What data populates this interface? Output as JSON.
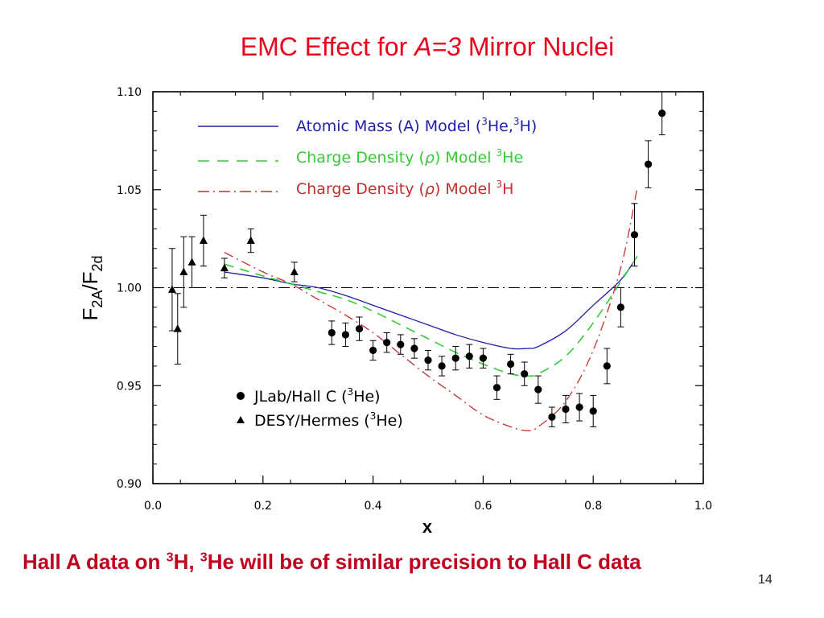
{
  "slide": {
    "title_prefix": "EMC Effect for ",
    "title_italic": "A=3",
    "title_suffix": " Mirror Nuclei",
    "footer_part1": "Hall A data on ",
    "footer_sup1": "3",
    "footer_part2": "H, ",
    "footer_sup2": "3",
    "footer_part3": "He will be of similar precision to Hall C data",
    "page_number": "14"
  },
  "chart_data": {
    "type": "scatter",
    "xlabel": "x",
    "ylabel_main": "F",
    "ylabel_sub1": "2A",
    "ylabel_sep": "/F",
    "ylabel_sub2": "2d",
    "xlim": [
      0.0,
      1.0
    ],
    "ylim": [
      0.9,
      1.1
    ],
    "x_ticks": [
      0.0,
      0.2,
      0.4,
      0.6,
      0.8,
      1.0
    ],
    "x_tick_labels": [
      "0.0",
      "0.2",
      "0.4",
      "0.6",
      "0.8",
      "1.0"
    ],
    "y_ticks": [
      0.9,
      0.95,
      1.0,
      1.05,
      1.1
    ],
    "y_tick_labels": [
      "0.90",
      "0.95",
      "1.00",
      "1.05",
      "1.10"
    ],
    "reference_line": 1.0,
    "colors": {
      "atomic_mass": "#1f1fa8",
      "charge_he3": "#33cc33",
      "charge_h3": "#c03030",
      "points": "#000000",
      "reference": "#000000"
    },
    "model_curves": [
      {
        "id": "atomic-mass",
        "style": "solid",
        "label_main": "Atomic Mass (A) Model (",
        "label_sup1": "3",
        "label_mid": "He,",
        "label_sup2": "3",
        "label_end": "H)",
        "points": [
          [
            0.13,
            1.008
          ],
          [
            0.2,
            1.005
          ],
          [
            0.25,
            1.002
          ],
          [
            0.3,
            1.0
          ],
          [
            0.35,
            0.996
          ],
          [
            0.4,
            0.991
          ],
          [
            0.45,
            0.986
          ],
          [
            0.5,
            0.981
          ],
          [
            0.55,
            0.976
          ],
          [
            0.6,
            0.972
          ],
          [
            0.65,
            0.969
          ],
          [
            0.68,
            0.969
          ],
          [
            0.7,
            0.97
          ],
          [
            0.75,
            0.978
          ],
          [
            0.8,
            0.991
          ],
          [
            0.85,
            1.004
          ],
          [
            0.88,
            1.016
          ]
        ]
      },
      {
        "id": "charge-density-he3",
        "style": "dashed",
        "label_main": "Charge Density (",
        "label_rho": "ρ",
        "label_mid": ") Model ",
        "label_sup1": "3",
        "label_end": "He",
        "points": [
          [
            0.13,
            1.012
          ],
          [
            0.2,
            1.006
          ],
          [
            0.25,
            1.002
          ],
          [
            0.3,
            0.998
          ],
          [
            0.35,
            0.994
          ],
          [
            0.4,
            0.988
          ],
          [
            0.45,
            0.981
          ],
          [
            0.5,
            0.974
          ],
          [
            0.55,
            0.967
          ],
          [
            0.6,
            0.961
          ],
          [
            0.65,
            0.956
          ],
          [
            0.68,
            0.955
          ],
          [
            0.7,
            0.956
          ],
          [
            0.75,
            0.965
          ],
          [
            0.8,
            0.982
          ],
          [
            0.85,
            1.003
          ],
          [
            0.88,
            1.016
          ]
        ]
      },
      {
        "id": "charge-density-h3",
        "style": "dashdot",
        "label_main": "Charge Density (",
        "label_rho": "ρ",
        "label_mid": ") Model ",
        "label_sup1": "3",
        "label_end": "H",
        "points": [
          [
            0.13,
            1.018
          ],
          [
            0.2,
            1.008
          ],
          [
            0.25,
            1.002
          ],
          [
            0.3,
            0.994
          ],
          [
            0.35,
            0.986
          ],
          [
            0.4,
            0.977
          ],
          [
            0.45,
            0.966
          ],
          [
            0.5,
            0.955
          ],
          [
            0.55,
            0.945
          ],
          [
            0.6,
            0.935
          ],
          [
            0.65,
            0.929
          ],
          [
            0.68,
            0.927
          ],
          [
            0.7,
            0.929
          ],
          [
            0.75,
            0.942
          ],
          [
            0.8,
            0.968
          ],
          [
            0.85,
            1.01
          ],
          [
            0.88,
            1.051
          ]
        ]
      }
    ],
    "series": [
      {
        "name_main": "JLab/Hall C (",
        "name_sup": "3",
        "name_end": "He)",
        "marker": "circle",
        "points": [
          {
            "x": 0.325,
            "y": 0.977,
            "err": 0.006
          },
          {
            "x": 0.35,
            "y": 0.976,
            "err": 0.006
          },
          {
            "x": 0.375,
            "y": 0.979,
            "err": 0.006
          },
          {
            "x": 0.4,
            "y": 0.968,
            "err": 0.005
          },
          {
            "x": 0.425,
            "y": 0.972,
            "err": 0.005
          },
          {
            "x": 0.45,
            "y": 0.971,
            "err": 0.005
          },
          {
            "x": 0.475,
            "y": 0.969,
            "err": 0.005
          },
          {
            "x": 0.5,
            "y": 0.963,
            "err": 0.005
          },
          {
            "x": 0.525,
            "y": 0.96,
            "err": 0.005
          },
          {
            "x": 0.55,
            "y": 0.964,
            "err": 0.006
          },
          {
            "x": 0.575,
            "y": 0.965,
            "err": 0.006
          },
          {
            "x": 0.6,
            "y": 0.964,
            "err": 0.005
          },
          {
            "x": 0.625,
            "y": 0.949,
            "err": 0.006
          },
          {
            "x": 0.65,
            "y": 0.961,
            "err": 0.005
          },
          {
            "x": 0.675,
            "y": 0.956,
            "err": 0.006
          },
          {
            "x": 0.7,
            "y": 0.948,
            "err": 0.007
          },
          {
            "x": 0.725,
            "y": 0.934,
            "err": 0.005
          },
          {
            "x": 0.75,
            "y": 0.938,
            "err": 0.007
          },
          {
            "x": 0.775,
            "y": 0.939,
            "err": 0.007
          },
          {
            "x": 0.8,
            "y": 0.937,
            "err": 0.008
          },
          {
            "x": 0.825,
            "y": 0.96,
            "err": 0.009
          },
          {
            "x": 0.85,
            "y": 0.99,
            "err": 0.01
          },
          {
            "x": 0.875,
            "y": 1.027,
            "err": 0.016
          },
          {
            "x": 0.9,
            "y": 1.063,
            "err": 0.012
          },
          {
            "x": 0.925,
            "y": 1.089,
            "err": 0.011
          }
        ]
      },
      {
        "name_main": "DESY/Hermes (",
        "name_sup": "3",
        "name_end": "He)",
        "marker": "triangle",
        "points": [
          {
            "x": 0.035,
            "y": 0.999,
            "err": 0.021
          },
          {
            "x": 0.045,
            "y": 0.979,
            "err": 0.018
          },
          {
            "x": 0.056,
            "y": 1.008,
            "err": 0.018
          },
          {
            "x": 0.071,
            "y": 1.013,
            "err": 0.013
          },
          {
            "x": 0.092,
            "y": 1.024,
            "err": 0.013
          },
          {
            "x": 0.13,
            "y": 1.01,
            "err": 0.005
          },
          {
            "x": 0.178,
            "y": 1.024,
            "err": 0.006
          },
          {
            "x": 0.257,
            "y": 1.008,
            "err": 0.005
          }
        ]
      }
    ]
  }
}
